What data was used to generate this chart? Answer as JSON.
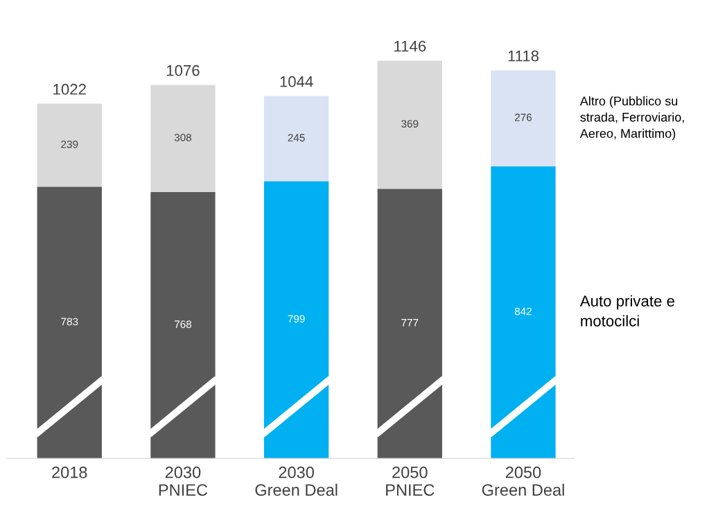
{
  "chart_data": {
    "type": "bar",
    "stacked": true,
    "data_labels": true,
    "categories": [
      "2018",
      "2030\nPNIEC",
      "2030\nGreen Deal",
      "2050\nPNIEC",
      "2050\nGreen Deal"
    ],
    "series": [
      {
        "name": "Auto private e\nmotocilci",
        "colors": [
          "#595959",
          "#595959",
          "#00b0f0",
          "#595959",
          "#00b0f0"
        ],
        "values": [
          783,
          768,
          799,
          777,
          842
        ]
      },
      {
        "name": "Altro (Pubblico su\nstrada, Ferroviario,\nAereo, Marittimo)",
        "colors": [
          "#d9d9d9",
          "#d9d9d9",
          "#dae3f3",
          "#d9d9d9",
          "#dae3f3"
        ],
        "values": [
          239,
          308,
          245,
          369,
          276
        ]
      }
    ],
    "totals": [
      "1022",
      "1076",
      "1044",
      "1146",
      "1118"
    ]
  }
}
